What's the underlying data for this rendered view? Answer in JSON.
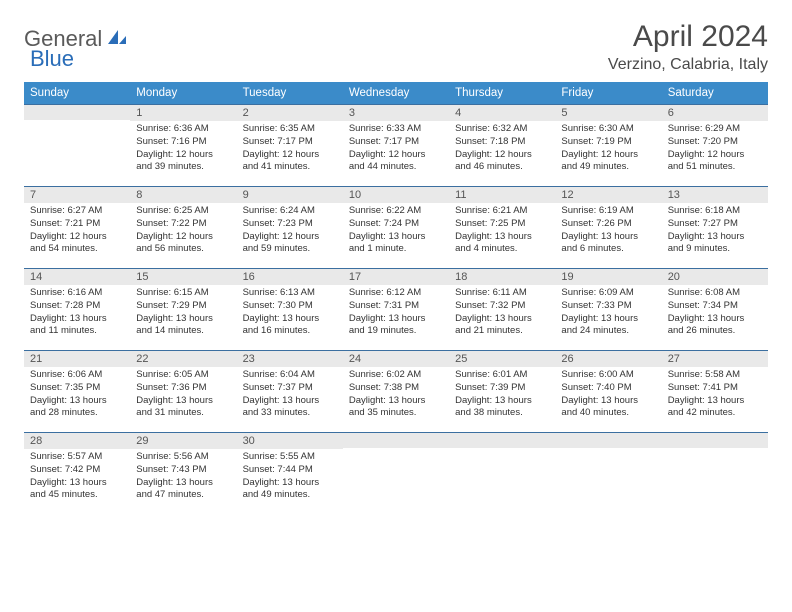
{
  "logo": {
    "text1": "General",
    "text2": "Blue"
  },
  "title": "April 2024",
  "location": "Verzino, Calabria, Italy",
  "colors": {
    "header_bg": "#3b8bc9",
    "header_text": "#ffffff",
    "daynum_bg": "#e9e9e9",
    "daynum_border": "#3b6fa0",
    "text": "#333333",
    "title_text": "#4a4a4a",
    "logo_gray": "#5a5a5a",
    "logo_blue": "#2a6db8"
  },
  "typography": {
    "title_fontsize": 30,
    "location_fontsize": 16,
    "header_fontsize": 11.5,
    "daynum_fontsize": 11,
    "detail_fontsize": 9.5
  },
  "weekdays": [
    "Sunday",
    "Monday",
    "Tuesday",
    "Wednesday",
    "Thursday",
    "Friday",
    "Saturday"
  ],
  "weeks": [
    [
      {
        "day": "",
        "sunrise": "",
        "sunset": "",
        "daylight": ""
      },
      {
        "day": "1",
        "sunrise": "Sunrise: 6:36 AM",
        "sunset": "Sunset: 7:16 PM",
        "daylight": "Daylight: 12 hours and 39 minutes."
      },
      {
        "day": "2",
        "sunrise": "Sunrise: 6:35 AM",
        "sunset": "Sunset: 7:17 PM",
        "daylight": "Daylight: 12 hours and 41 minutes."
      },
      {
        "day": "3",
        "sunrise": "Sunrise: 6:33 AM",
        "sunset": "Sunset: 7:17 PM",
        "daylight": "Daylight: 12 hours and 44 minutes."
      },
      {
        "day": "4",
        "sunrise": "Sunrise: 6:32 AM",
        "sunset": "Sunset: 7:18 PM",
        "daylight": "Daylight: 12 hours and 46 minutes."
      },
      {
        "day": "5",
        "sunrise": "Sunrise: 6:30 AM",
        "sunset": "Sunset: 7:19 PM",
        "daylight": "Daylight: 12 hours and 49 minutes."
      },
      {
        "day": "6",
        "sunrise": "Sunrise: 6:29 AM",
        "sunset": "Sunset: 7:20 PM",
        "daylight": "Daylight: 12 hours and 51 minutes."
      }
    ],
    [
      {
        "day": "7",
        "sunrise": "Sunrise: 6:27 AM",
        "sunset": "Sunset: 7:21 PM",
        "daylight": "Daylight: 12 hours and 54 minutes."
      },
      {
        "day": "8",
        "sunrise": "Sunrise: 6:25 AM",
        "sunset": "Sunset: 7:22 PM",
        "daylight": "Daylight: 12 hours and 56 minutes."
      },
      {
        "day": "9",
        "sunrise": "Sunrise: 6:24 AM",
        "sunset": "Sunset: 7:23 PM",
        "daylight": "Daylight: 12 hours and 59 minutes."
      },
      {
        "day": "10",
        "sunrise": "Sunrise: 6:22 AM",
        "sunset": "Sunset: 7:24 PM",
        "daylight": "Daylight: 13 hours and 1 minute."
      },
      {
        "day": "11",
        "sunrise": "Sunrise: 6:21 AM",
        "sunset": "Sunset: 7:25 PM",
        "daylight": "Daylight: 13 hours and 4 minutes."
      },
      {
        "day": "12",
        "sunrise": "Sunrise: 6:19 AM",
        "sunset": "Sunset: 7:26 PM",
        "daylight": "Daylight: 13 hours and 6 minutes."
      },
      {
        "day": "13",
        "sunrise": "Sunrise: 6:18 AM",
        "sunset": "Sunset: 7:27 PM",
        "daylight": "Daylight: 13 hours and 9 minutes."
      }
    ],
    [
      {
        "day": "14",
        "sunrise": "Sunrise: 6:16 AM",
        "sunset": "Sunset: 7:28 PM",
        "daylight": "Daylight: 13 hours and 11 minutes."
      },
      {
        "day": "15",
        "sunrise": "Sunrise: 6:15 AM",
        "sunset": "Sunset: 7:29 PM",
        "daylight": "Daylight: 13 hours and 14 minutes."
      },
      {
        "day": "16",
        "sunrise": "Sunrise: 6:13 AM",
        "sunset": "Sunset: 7:30 PM",
        "daylight": "Daylight: 13 hours and 16 minutes."
      },
      {
        "day": "17",
        "sunrise": "Sunrise: 6:12 AM",
        "sunset": "Sunset: 7:31 PM",
        "daylight": "Daylight: 13 hours and 19 minutes."
      },
      {
        "day": "18",
        "sunrise": "Sunrise: 6:11 AM",
        "sunset": "Sunset: 7:32 PM",
        "daylight": "Daylight: 13 hours and 21 minutes."
      },
      {
        "day": "19",
        "sunrise": "Sunrise: 6:09 AM",
        "sunset": "Sunset: 7:33 PM",
        "daylight": "Daylight: 13 hours and 24 minutes."
      },
      {
        "day": "20",
        "sunrise": "Sunrise: 6:08 AM",
        "sunset": "Sunset: 7:34 PM",
        "daylight": "Daylight: 13 hours and 26 minutes."
      }
    ],
    [
      {
        "day": "21",
        "sunrise": "Sunrise: 6:06 AM",
        "sunset": "Sunset: 7:35 PM",
        "daylight": "Daylight: 13 hours and 28 minutes."
      },
      {
        "day": "22",
        "sunrise": "Sunrise: 6:05 AM",
        "sunset": "Sunset: 7:36 PM",
        "daylight": "Daylight: 13 hours and 31 minutes."
      },
      {
        "day": "23",
        "sunrise": "Sunrise: 6:04 AM",
        "sunset": "Sunset: 7:37 PM",
        "daylight": "Daylight: 13 hours and 33 minutes."
      },
      {
        "day": "24",
        "sunrise": "Sunrise: 6:02 AM",
        "sunset": "Sunset: 7:38 PM",
        "daylight": "Daylight: 13 hours and 35 minutes."
      },
      {
        "day": "25",
        "sunrise": "Sunrise: 6:01 AM",
        "sunset": "Sunset: 7:39 PM",
        "daylight": "Daylight: 13 hours and 38 minutes."
      },
      {
        "day": "26",
        "sunrise": "Sunrise: 6:00 AM",
        "sunset": "Sunset: 7:40 PM",
        "daylight": "Daylight: 13 hours and 40 minutes."
      },
      {
        "day": "27",
        "sunrise": "Sunrise: 5:58 AM",
        "sunset": "Sunset: 7:41 PM",
        "daylight": "Daylight: 13 hours and 42 minutes."
      }
    ],
    [
      {
        "day": "28",
        "sunrise": "Sunrise: 5:57 AM",
        "sunset": "Sunset: 7:42 PM",
        "daylight": "Daylight: 13 hours and 45 minutes."
      },
      {
        "day": "29",
        "sunrise": "Sunrise: 5:56 AM",
        "sunset": "Sunset: 7:43 PM",
        "daylight": "Daylight: 13 hours and 47 minutes."
      },
      {
        "day": "30",
        "sunrise": "Sunrise: 5:55 AM",
        "sunset": "Sunset: 7:44 PM",
        "daylight": "Daylight: 13 hours and 49 minutes."
      },
      {
        "day": "",
        "sunrise": "",
        "sunset": "",
        "daylight": ""
      },
      {
        "day": "",
        "sunrise": "",
        "sunset": "",
        "daylight": ""
      },
      {
        "day": "",
        "sunrise": "",
        "sunset": "",
        "daylight": ""
      },
      {
        "day": "",
        "sunrise": "",
        "sunset": "",
        "daylight": ""
      }
    ]
  ]
}
